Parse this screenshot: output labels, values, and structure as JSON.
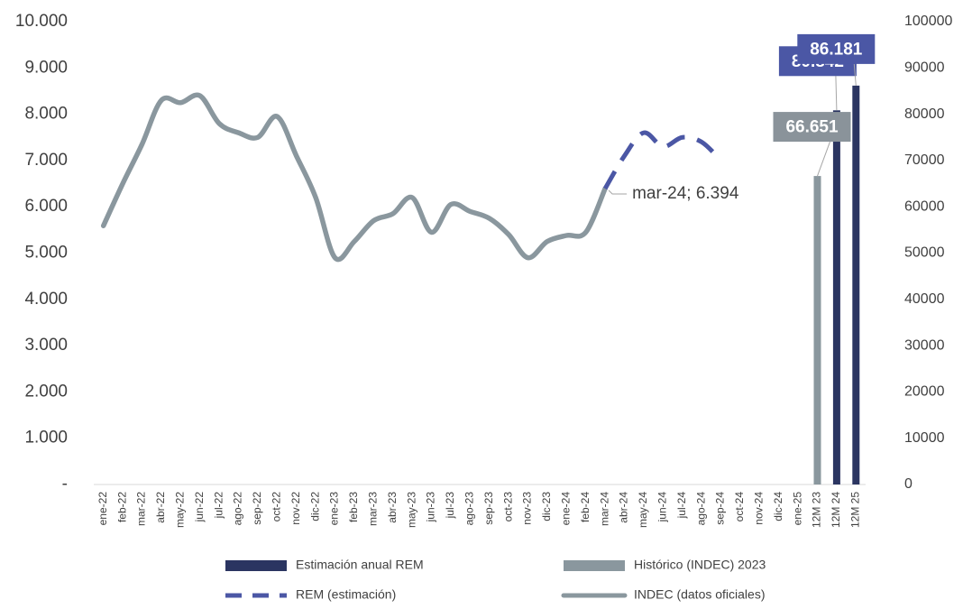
{
  "chart_data": {
    "type": "combo",
    "categories": [
      "ene-22",
      "feb-22",
      "mar-22",
      "abr-22",
      "may-22",
      "jun-22",
      "jul-22",
      "ago-22",
      "sep-22",
      "oct-22",
      "nov-22",
      "dic-22",
      "ene-23",
      "feb-23",
      "mar-23",
      "abr-23",
      "may-23",
      "jun-23",
      "jul-23",
      "ago-23",
      "sep-23",
      "oct-23",
      "nov-23",
      "dic-23",
      "ene-24",
      "feb-24",
      "mar-24",
      "abr-24",
      "may-24",
      "jun-24",
      "jul-24",
      "ago-24",
      "sep-24",
      "oct-24",
      "nov-24",
      "dic-24",
      "ene-25",
      "12M 23",
      "12M 24",
      "12M 25"
    ],
    "ylim": [
      0,
      10000
    ],
    "yticks": [
      {
        "value": 0,
        "label": "-"
      },
      {
        "value": 1000,
        "label": "1.000"
      },
      {
        "value": 2000,
        "label": "2.000"
      },
      {
        "value": 3000,
        "label": "3.000"
      },
      {
        "value": 4000,
        "label": "4.000"
      },
      {
        "value": 5000,
        "label": "5.000"
      },
      {
        "value": 6000,
        "label": "6.000"
      },
      {
        "value": 7000,
        "label": "7.000"
      },
      {
        "value": 8000,
        "label": "8.000"
      },
      {
        "value": 9000,
        "label": "9.000"
      },
      {
        "value": 10000,
        "label": "10.000"
      }
    ],
    "y2lim": [
      0,
      100000
    ],
    "y2ticks": [
      0,
      10000,
      20000,
      30000,
      40000,
      50000,
      60000,
      70000,
      80000,
      90000,
      100000
    ],
    "series": [
      {
        "name": "Estimación anual REM",
        "type": "bar",
        "axis": "y2",
        "color": "#2b3561",
        "label_color": "#4b57a5",
        "values": [
          null,
          null,
          null,
          null,
          null,
          null,
          null,
          null,
          null,
          null,
          null,
          null,
          null,
          null,
          null,
          null,
          null,
          null,
          null,
          null,
          null,
          null,
          null,
          null,
          null,
          null,
          null,
          null,
          null,
          null,
          null,
          null,
          null,
          null,
          null,
          null,
          null,
          null,
          80842,
          86181
        ],
        "value_labels": [
          null,
          null,
          null,
          null,
          null,
          null,
          null,
          null,
          null,
          null,
          null,
          null,
          null,
          null,
          null,
          null,
          null,
          null,
          null,
          null,
          null,
          null,
          null,
          null,
          null,
          null,
          null,
          null,
          null,
          null,
          null,
          null,
          null,
          null,
          null,
          null,
          null,
          null,
          "80.842",
          "86.181"
        ]
      },
      {
        "name": "Histórico (INDEC) 2023",
        "type": "bar",
        "axis": "y2",
        "color": "#8a979e",
        "label_color": "#8a939a",
        "values": [
          null,
          null,
          null,
          null,
          null,
          null,
          null,
          null,
          null,
          null,
          null,
          null,
          null,
          null,
          null,
          null,
          null,
          null,
          null,
          null,
          null,
          null,
          null,
          null,
          null,
          null,
          null,
          null,
          null,
          null,
          null,
          null,
          null,
          null,
          null,
          null,
          null,
          66651,
          null,
          null
        ],
        "value_labels": [
          null,
          null,
          null,
          null,
          null,
          null,
          null,
          null,
          null,
          null,
          null,
          null,
          null,
          null,
          null,
          null,
          null,
          null,
          null,
          null,
          null,
          null,
          null,
          null,
          null,
          null,
          null,
          null,
          null,
          null,
          null,
          null,
          null,
          null,
          null,
          null,
          null,
          "66.651",
          null,
          null
        ]
      },
      {
        "name": "REM (estimación)",
        "type": "line",
        "dashed": true,
        "color": "#4b57a5",
        "values": [
          null,
          null,
          null,
          null,
          null,
          null,
          null,
          null,
          null,
          null,
          null,
          null,
          null,
          null,
          null,
          null,
          null,
          null,
          null,
          null,
          null,
          null,
          null,
          null,
          null,
          null,
          6394,
          7100,
          7600,
          7300,
          7500,
          7400,
          7000,
          null,
          null,
          null,
          null,
          null,
          null,
          null
        ]
      },
      {
        "name": "INDEC (datos oficiales)",
        "type": "line",
        "dashed": false,
        "color": "#8a979e",
        "values": [
          5590,
          6500,
          7350,
          8300,
          8250,
          8400,
          7800,
          7600,
          7500,
          7950,
          7100,
          6200,
          4900,
          5250,
          5700,
          5850,
          6200,
          5450,
          6050,
          5900,
          5750,
          5400,
          4900,
          5250,
          5380,
          5450,
          6394,
          null,
          null,
          null,
          null,
          null,
          null,
          null,
          null,
          null,
          null,
          null,
          null,
          null
        ]
      }
    ],
    "annotations": [
      {
        "text": "mar-24; 6.394"
      }
    ]
  }
}
